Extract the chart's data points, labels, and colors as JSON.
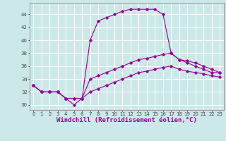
{
  "xlabel": "Windchill (Refroidissement éolien,°C)",
  "bg_color": "#cce8e8",
  "line_color": "#990099",
  "x_ticks": [
    0,
    1,
    2,
    3,
    4,
    5,
    6,
    7,
    8,
    9,
    10,
    11,
    12,
    13,
    14,
    15,
    16,
    17,
    18,
    19,
    20,
    21,
    22,
    23
  ],
  "y_ticks": [
    30,
    32,
    34,
    36,
    38,
    40,
    42,
    44
  ],
  "xlim": [
    -0.5,
    23.5
  ],
  "ylim": [
    29.2,
    45.8
  ],
  "curves": [
    {
      "x": [
        0,
        1,
        2,
        3,
        4,
        5,
        6,
        7,
        8,
        9,
        10,
        11,
        12,
        13,
        14,
        15,
        16,
        17,
        18,
        19,
        20,
        21,
        22,
        23
      ],
      "y": [
        33,
        32,
        32,
        32,
        31,
        30,
        31,
        40,
        43,
        43.5,
        44,
        44.5,
        44.8,
        44.8,
        44.8,
        44.8,
        44,
        38,
        37,
        36.8,
        36.5,
        36,
        35.5,
        35
      ]
    },
    {
      "x": [
        0,
        1,
        2,
        3,
        4,
        5,
        6,
        7,
        8,
        9,
        10,
        11,
        12,
        13,
        14,
        15,
        16,
        17,
        18,
        19,
        20,
        21,
        22,
        23
      ],
      "y": [
        33,
        32,
        32,
        32,
        31,
        31,
        31,
        34,
        34.5,
        35,
        35.5,
        36,
        36.5,
        37,
        37.2,
        37.5,
        37.8,
        38,
        37,
        36.5,
        36,
        35.5,
        35,
        35
      ]
    },
    {
      "x": [
        0,
        1,
        2,
        3,
        4,
        5,
        6,
        7,
        8,
        9,
        10,
        11,
        12,
        13,
        14,
        15,
        16,
        17,
        18,
        19,
        20,
        21,
        22,
        23
      ],
      "y": [
        33,
        32,
        32,
        32,
        31,
        31,
        31,
        32,
        32.5,
        33,
        33.5,
        34,
        34.5,
        35,
        35.2,
        35.5,
        35.8,
        36,
        35.5,
        35.2,
        35,
        34.8,
        34.5,
        34.3
      ]
    }
  ],
  "grid_color": "#ffffff",
  "tick_fontsize": 5.0,
  "label_fontsize": 6.5
}
